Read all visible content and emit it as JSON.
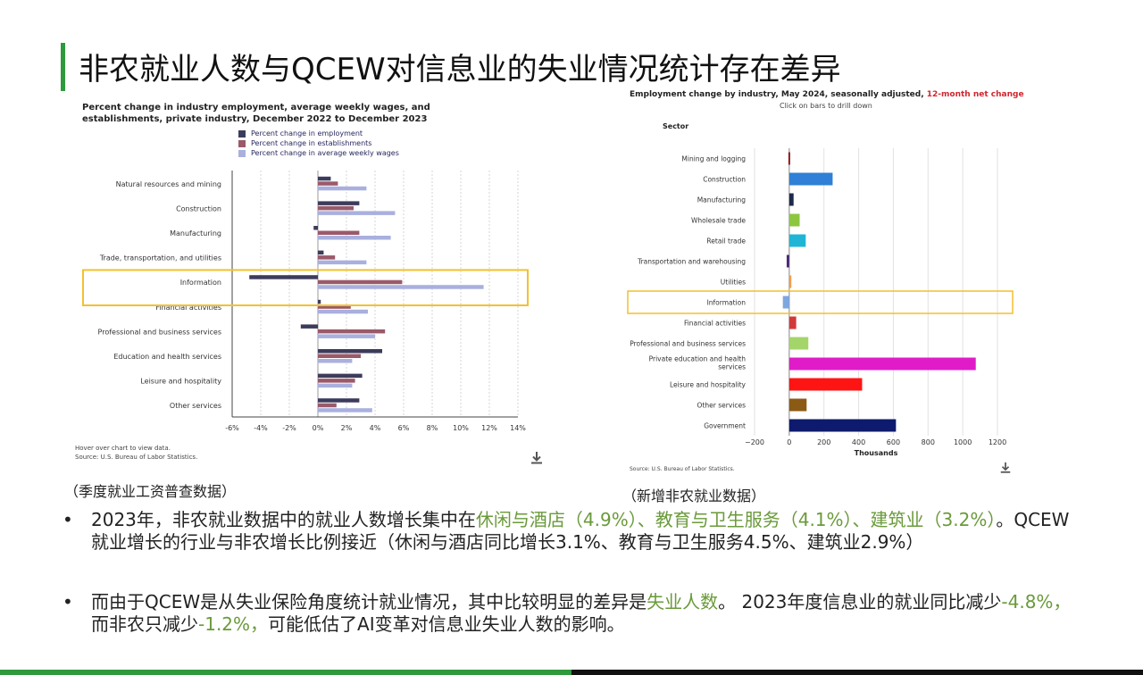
{
  "slide": {
    "title": "非农就业人数与QCEW对信息业的失业情况统计存在差异",
    "caption_left": "（季度就业工资普查数据）",
    "caption_right": "（新增非农就业数据）"
  },
  "left_chart": {
    "title": "Percent change in industry employment, average weekly wages, and establishments, private industry, December 2022 to December 2023",
    "hover_note": "Hover over chart to view data.",
    "source": "Source: U.S. Bureau of Labor Statistics."
  },
  "right_chart": {
    "title_main": "Employment change by industry, May 2024, seasonally adjusted, ",
    "title_red": "12-month net change",
    "subtitle": "Click on bars to drill down",
    "sector_label": "Sector",
    "source": "Source: U.S. Bureau of Labor Statistics."
  },
  "bullets": [
    {
      "segments": [
        {
          "text": "2023年，非农就业数据中的就业人数增长集中在",
          "highlight": false
        },
        {
          "text": "休闲与酒店（4.9%）、教育与卫生服务（4.1%）、建筑业（3.2%）",
          "highlight": true
        },
        {
          "text": "。QCEW就业增长的行业与非农增长比例接近（休闲与酒店同比增长3.1%、教育与卫生服务4.5%、建筑业2.9%）",
          "highlight": false
        }
      ]
    },
    {
      "segments": [
        {
          "text": "而由于QCEW是从失业保险角度统计就业情况，其中比较明显的差异是",
          "highlight": false
        },
        {
          "text": "失业人数",
          "highlight": true
        },
        {
          "text": "。 2023年度信息业的就业同比减少",
          "highlight": false
        },
        {
          "text": "-4.8%，",
          "highlight": true
        },
        {
          "text": "而非农只减少",
          "highlight": false
        },
        {
          "text": "-1.2%，",
          "highlight": true
        },
        {
          "text": "可能低估了AI变革对信息业失业人数的影响。",
          "highlight": false
        }
      ]
    }
  ],
  "colors": {
    "accent_green": "#2e9a3c",
    "highlight_green": "#6a9a3a",
    "employment": "#3d3b5c",
    "establishments": "#9a5a6a",
    "wages": "#a9b0de",
    "highlight_box": "#f2c12e"
  },
  "icons": {
    "download": "download-icon"
  },
  "chart_data": [
    {
      "type": "bar",
      "orientation": "horizontal",
      "title": "Percent change in industry employment, average weekly wages, and establishments, private industry, December 2022 to December 2023",
      "categories": [
        "Natural resources and mining",
        "Construction",
        "Manufacturing",
        "Trade, transportation, and utilities",
        "Information",
        "Financial activities",
        "Professional and business services",
        "Education and health services",
        "Leisure and hospitality",
        "Other services"
      ],
      "series": [
        {
          "name": "Percent change in employment",
          "values": [
            0.9,
            2.9,
            -0.3,
            0.4,
            -4.8,
            0.2,
            -1.2,
            4.5,
            3.1,
            2.9
          ]
        },
        {
          "name": "Percent change in establishments",
          "values": [
            1.4,
            2.5,
            2.9,
            1.2,
            5.9,
            2.3,
            4.7,
            3.0,
            2.6,
            1.3
          ]
        },
        {
          "name": "Percent change in average weekly wages",
          "values": [
            3.4,
            5.4,
            5.1,
            3.4,
            11.6,
            3.5,
            4.0,
            2.4,
            2.4,
            3.8
          ]
        }
      ],
      "x_ticks": [
        "-6%",
        "-4%",
        "-2%",
        "0%",
        "2%",
        "4%",
        "6%",
        "8%",
        "10%",
        "12%",
        "14%"
      ],
      "xlim": [
        -6,
        14
      ],
      "highlighted_category": "Information",
      "legend_position": "top"
    },
    {
      "type": "bar",
      "orientation": "horizontal",
      "title": "Employment change by industry, May 2024, seasonally adjusted, 12-month net change",
      "categories": [
        "Mining and logging",
        "Construction",
        "Manufacturing",
        "Wholesale trade",
        "Retail trade",
        "Transportation and warehousing",
        "Utilities",
        "Information",
        "Financial activities",
        "Professional and business services",
        "Private education and health services",
        "Leisure and hospitality",
        "Other services",
        "Government"
      ],
      "values": [
        -5,
        250,
        25,
        60,
        95,
        -15,
        12,
        -37,
        40,
        110,
        1075,
        420,
        100,
        615
      ],
      "colors": [
        "#8b1a1a",
        "#2f80d6",
        "#1c2b4a",
        "#8cc63f",
        "#1fb5d6",
        "#4b2a7a",
        "#f39c4a",
        "#7da7e0",
        "#d23a3a",
        "#a4d56a",
        "#e01cc8",
        "#ff1414",
        "#8b5a14",
        "#0d1a6e"
      ],
      "xlabel": "Thousands",
      "ylabel": "Sector",
      "x_ticks": [
        "−200",
        "0",
        "200",
        "400",
        "600",
        "800",
        "1000",
        "1200"
      ],
      "xlim": [
        -200,
        1200
      ],
      "highlighted_category": "Information"
    }
  ]
}
